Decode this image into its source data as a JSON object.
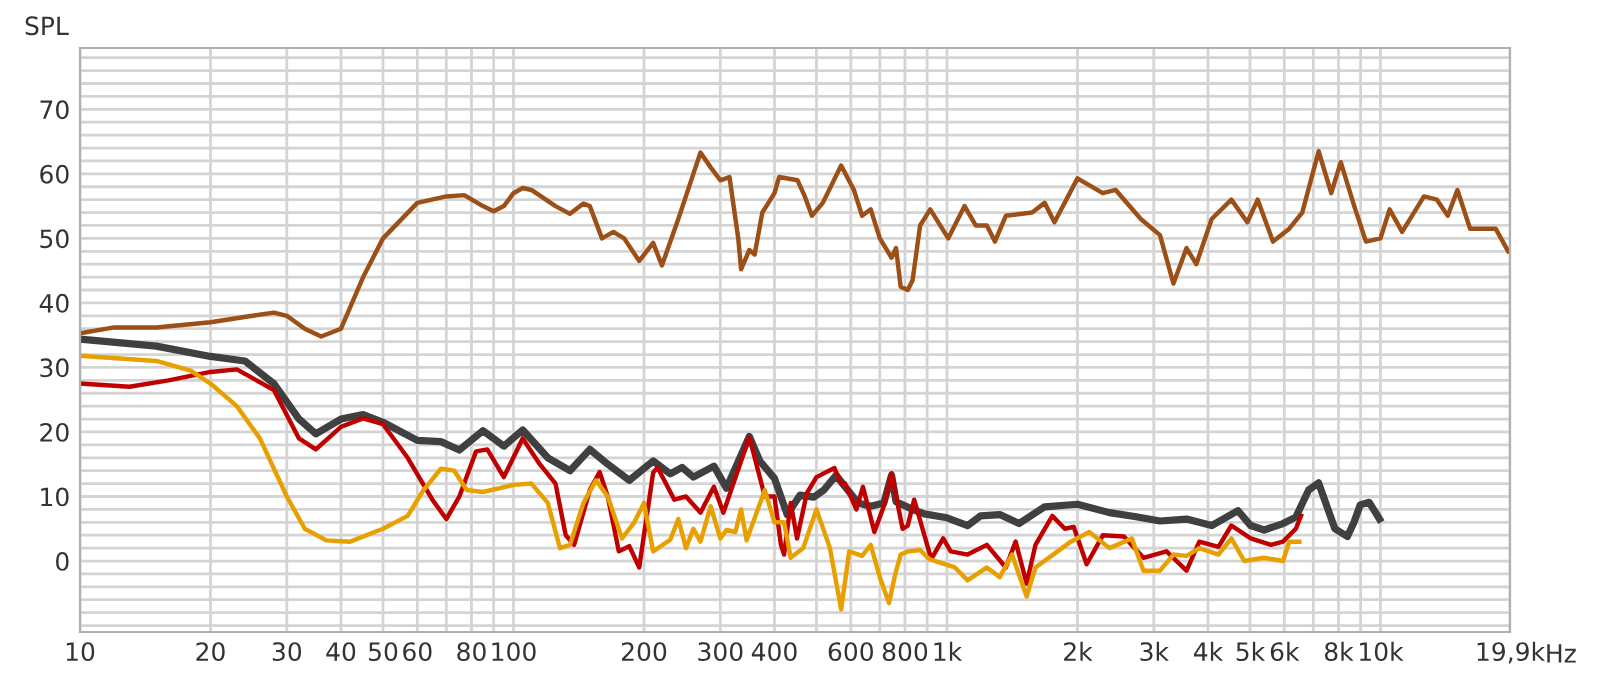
{
  "chart_data": {
    "type": "line",
    "ylabel": "SPL",
    "log": "x",
    "grid": true,
    "line_style": "solid",
    "xlabel": "Hz",
    "xlim": [
      10,
      19900
    ],
    "ylim": [
      -11,
      79.5
    ],
    "xticks": [
      10,
      20,
      30,
      40,
      50,
      60,
      {
        "value": 70,
        "label": null
      },
      80,
      {
        "value": 90,
        "label": null
      },
      100,
      200,
      300,
      400,
      {
        "value": 500,
        "label": null
      },
      600,
      {
        "value": 700,
        "label": null
      },
      800,
      {
        "value": 900,
        "label": null
      },
      {
        "value": 1000,
        "label": "1k"
      },
      {
        "value": 2000,
        "label": "2k"
      },
      {
        "value": 3000,
        "label": "3k"
      },
      {
        "value": 4000,
        "label": "4k"
      },
      {
        "value": 5000,
        "label": "5k"
      },
      {
        "value": 6000,
        "label": "6k"
      },
      {
        "value": 7000,
        "label": null
      },
      {
        "value": 8000,
        "label": "8k"
      },
      {
        "value": 9000,
        "label": null
      },
      {
        "value": 10000,
        "label": "10k"
      },
      {
        "value": 19900,
        "label": "19,9k"
      }
    ],
    "yticks": [
      {
        "value": -10,
        "label": null
      },
      {
        "value": -8,
        "label": null
      },
      {
        "value": -6,
        "label": null
      },
      {
        "value": -4,
        "label": null
      },
      {
        "value": -2,
        "label": null
      },
      0,
      {
        "value": 2,
        "label": null
      },
      {
        "value": 4,
        "label": null
      },
      {
        "value": 6,
        "label": null
      },
      {
        "value": 8,
        "label": null
      },
      10,
      {
        "value": 12,
        "label": null
      },
      {
        "value": 14,
        "label": null
      },
      {
        "value": 16,
        "label": null
      },
      {
        "value": 18,
        "label": null
      },
      20,
      {
        "value": 22,
        "label": null
      },
      {
        "value": 24,
        "label": null
      },
      {
        "value": 26,
        "label": null
      },
      {
        "value": 28,
        "label": null
      },
      30,
      {
        "value": 32,
        "label": null
      },
      {
        "value": 34,
        "label": null
      },
      {
        "value": 36,
        "label": null
      },
      {
        "value": 38,
        "label": null
      },
      40,
      {
        "value": 42,
        "label": null
      },
      {
        "value": 44,
        "label": null
      },
      {
        "value": 46,
        "label": null
      },
      {
        "value": 48,
        "label": null
      },
      50,
      {
        "value": 52,
        "label": null
      },
      {
        "value": 54,
        "label": null
      },
      {
        "value": 56,
        "label": null
      },
      {
        "value": 58,
        "label": null
      },
      60,
      {
        "value": 62,
        "label": null
      },
      {
        "value": 64,
        "label": null
      },
      {
        "value": 66,
        "label": null
      },
      {
        "value": 68,
        "label": null
      },
      70,
      {
        "value": 72,
        "label": null
      },
      {
        "value": 74,
        "label": null
      },
      {
        "value": 76,
        "label": null
      },
      {
        "value": 78,
        "label": null
      }
    ],
    "series": [
      {
        "color": "#9c4f17",
        "x": [
          10,
          12,
          15,
          20,
          25,
          28,
          30,
          33,
          36,
          40,
          45,
          50,
          60,
          70,
          77,
          85,
          90,
          95,
          100,
          105,
          110,
          125,
          135,
          145,
          150,
          160,
          170,
          180,
          195,
          210,
          220,
          240,
          260,
          270,
          285,
          300,
          315,
          330,
          335,
          350,
          360,
          375,
          400,
          410,
          452,
          470,
          488,
          517,
          570,
          610,
          637,
          667,
          700,
          745,
          763,
          782,
          812,
          833,
          867,
          915,
          1007,
          1098,
          1165,
          1236,
          1290,
          1367,
          1572,
          1680,
          1770,
          2000,
          2288,
          2450,
          2800,
          3100,
          3330,
          3570,
          3760,
          4080,
          4530,
          4930,
          5210,
          5650,
          6160,
          6600,
          7200,
          7700,
          8100,
          8700,
          9260,
          10000,
          10500,
          11220,
          12600,
          13500,
          14300,
          15050,
          16100,
          17240,
          18440,
          19700
        ],
        "values": [
          35.3,
          36.2,
          36.2,
          37,
          38,
          38.5,
          38,
          36,
          34.8,
          36,
          44,
          50,
          55.5,
          56.5,
          56.7,
          55,
          54.2,
          55,
          57,
          57.8,
          57.5,
          55,
          53.8,
          55.4,
          55,
          50,
          51,
          50,
          46.5,
          49.3,
          45.8,
          53,
          60,
          63.3,
          61,
          59,
          59.5,
          50,
          45.2,
          48.2,
          47.5,
          54,
          57,
          59.5,
          59,
          56.5,
          53.5,
          55.5,
          61.3,
          57.5,
          53.5,
          54.5,
          50,
          47,
          48.5,
          42.5,
          42,
          43.5,
          52,
          54.5,
          50,
          55,
          52,
          52,
          49.5,
          53.5,
          54,
          55.5,
          52.5,
          59.3,
          57,
          57.5,
          53,
          50.5,
          43,
          48.5,
          46,
          53,
          56,
          52.5,
          56,
          49.5,
          51.5,
          54,
          63.5,
          57,
          61.8,
          55,
          49.5,
          50,
          54.5,
          51,
          56.5,
          56,
          53.5,
          57.5,
          51.5,
          51.5,
          51.5,
          48
        ]
      },
      {
        "color": "#404040",
        "x": [
          10,
          15,
          20,
          24,
          28,
          32,
          35,
          40,
          45,
          50,
          60,
          68,
          75,
          85,
          95,
          105,
          120,
          135,
          150,
          165,
          185,
          210,
          230,
          245,
          260,
          290,
          310,
          350,
          370,
          400,
          428,
          458,
          493,
          520,
          555,
          582,
          624,
          667,
          715,
          745,
          763,
          833,
          886,
          1000,
          1116,
          1195,
          1324,
          1467,
          1680,
          2000,
          2370,
          2710,
          3100,
          3570,
          4080,
          4690,
          5020,
          5390,
          5960,
          6380,
          6830,
          7200,
          7850,
          8390,
          8690,
          8980,
          9420,
          9950
        ],
        "values": [
          34.4,
          33.3,
          31.7,
          31,
          27.5,
          22,
          19.7,
          22,
          22.7,
          21.5,
          18.7,
          18.5,
          17.2,
          20.2,
          17.8,
          20.3,
          16,
          14,
          17.3,
          15,
          12.5,
          15.5,
          13.5,
          14.5,
          13,
          14.7,
          11.3,
          19.3,
          15.5,
          12.8,
          7.2,
          10.2,
          9.9,
          11,
          13.3,
          11.5,
          9,
          8.5,
          9,
          13.3,
          9.2,
          8,
          7.3,
          6.7,
          5.5,
          7,
          7.2,
          5.8,
          8.4,
          8.8,
          7.5,
          6.9,
          6.2,
          6.5,
          5.5,
          7.8,
          5.5,
          4.8,
          5.8,
          6.8,
          11,
          12.1,
          5,
          3.8,
          6,
          8.7,
          9.1,
          6.5
        ]
      },
      {
        "color": "#c00000",
        "x": [
          10,
          13,
          16,
          20,
          23,
          28,
          32,
          35,
          40,
          45,
          50,
          57,
          65,
          70,
          75,
          82,
          87,
          95,
          105,
          115,
          125,
          132,
          138,
          150,
          158,
          165,
          175,
          185,
          195,
          210,
          215,
          235,
          250,
          270,
          290,
          305,
          350,
          380,
          400,
          414,
          421,
          436,
          451,
          475,
          500,
          550,
          570,
          582,
          618,
          640,
          680,
          715,
          745,
          790,
          812,
          840,
          920,
          980,
          1020,
          1116,
          1236,
          1367,
          1440,
          1527,
          1600,
          1750,
          1870,
          1960,
          2100,
          2290,
          2560,
          2840,
          3210,
          3570,
          3820,
          4230,
          4530,
          5020,
          5590,
          5960,
          6380,
          6560
        ],
        "values": [
          27.5,
          27,
          28,
          29.3,
          29.7,
          26.5,
          19,
          17.3,
          20.8,
          22.1,
          21.2,
          16,
          9.5,
          6.5,
          10,
          17,
          17.3,
          13,
          19,
          15,
          12,
          4,
          2.5,
          11,
          13.8,
          10,
          1.5,
          2.3,
          -1,
          13.7,
          14.5,
          9.5,
          10,
          7.5,
          11.5,
          7.5,
          19.2,
          10,
          10,
          2.5,
          1,
          9,
          3.5,
          10.5,
          13,
          14.4,
          12,
          12,
          8,
          11.5,
          4.5,
          8.5,
          13.6,
          5,
          5.5,
          9.5,
          0.3,
          3.5,
          1.5,
          1,
          2.5,
          -1,
          3,
          -3.5,
          2.5,
          7,
          5,
          5.3,
          -0.5,
          4,
          3.8,
          0.5,
          1.5,
          -1.5,
          3,
          2.2,
          5.5,
          3.5,
          2.5,
          3,
          5,
          7
        ]
      },
      {
        "color": "#e8a000",
        "x": [
          10,
          15,
          18,
          20,
          23,
          26,
          30,
          33,
          37,
          42,
          50,
          57,
          62,
          68,
          73,
          78,
          85,
          100,
          110,
          120,
          128,
          135,
          145,
          155,
          165,
          178,
          190,
          200,
          210,
          230,
          240,
          250,
          260,
          270,
          285,
          300,
          310,
          325,
          335,
          345,
          380,
          400,
          421,
          436,
          466,
          500,
          537,
          570,
          595,
          637,
          667,
          700,
          735,
          760,
          782,
          815,
          867,
          910,
          1043,
          1116,
          1236,
          1324,
          1413,
          1527,
          1600,
          1800,
          1930,
          2130,
          2370,
          2670,
          2840,
          3100,
          3330,
          3570,
          3820,
          4230,
          4530,
          4850,
          5390,
          5960,
          6160,
          6500
        ],
        "values": [
          31.8,
          31,
          29.5,
          27.5,
          24,
          19,
          10,
          5,
          3.2,
          3,
          5,
          7,
          11,
          14.3,
          14,
          11,
          10.7,
          11.8,
          12,
          9,
          2,
          2.5,
          9,
          12.5,
          10,
          3.5,
          6,
          9,
          1.5,
          3.3,
          6.5,
          2,
          5,
          3,
          8.5,
          3.5,
          4.8,
          4.5,
          8,
          3.2,
          11,
          6,
          6,
          0.5,
          2,
          8,
          2,
          -7.5,
          1.5,
          0.8,
          2.5,
          -2.5,
          -6.5,
          -2,
          1,
          1.5,
          1.7,
          0.3,
          -1,
          -3,
          -1,
          -2.5,
          1,
          -5.5,
          -1,
          1.5,
          3,
          4.5,
          2,
          3.5,
          -1.5,
          -1.5,
          1,
          0.8,
          2,
          1,
          3.5,
          0,
          0.5,
          0,
          3,
          3
        ]
      }
    ]
  }
}
